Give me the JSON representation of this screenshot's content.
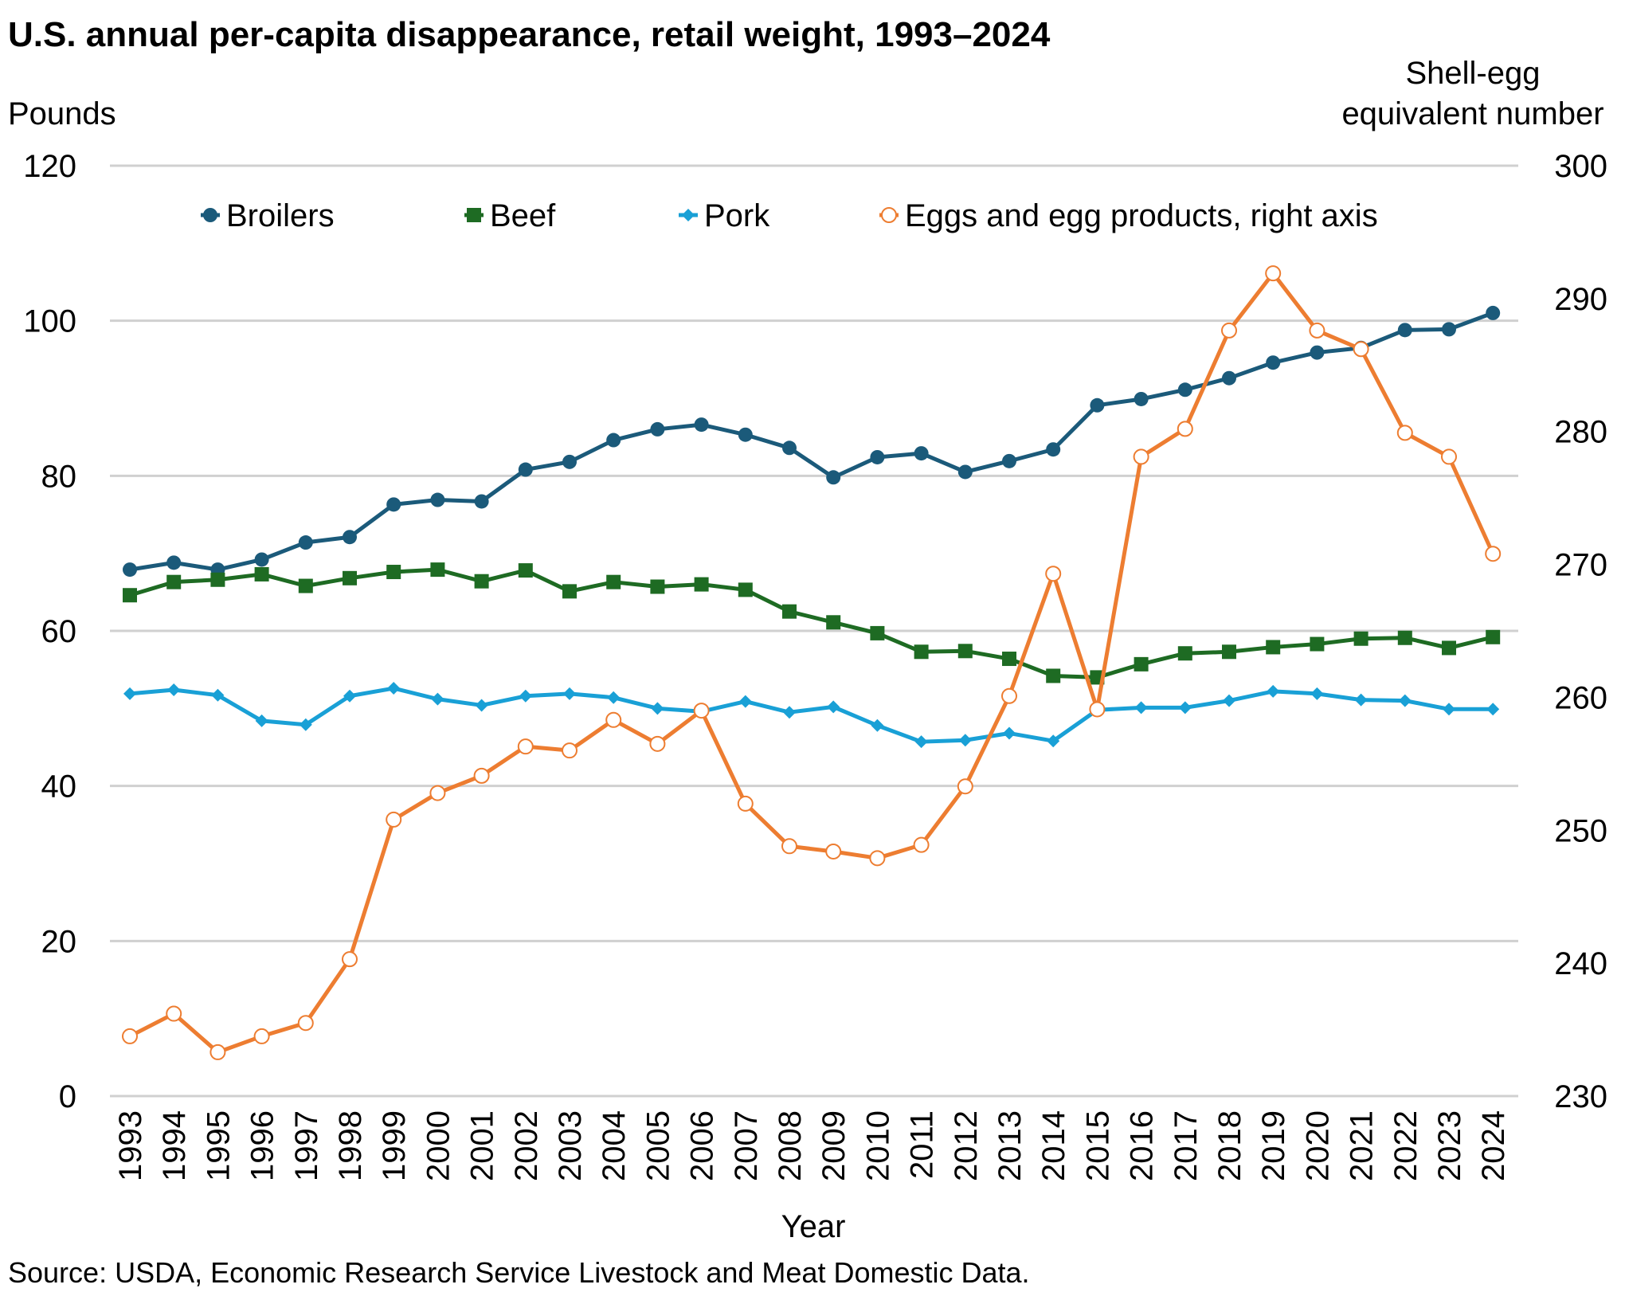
{
  "title": "U.S. annual per-capita disappearance, retail weight, 1993–2024",
  "source": "Source: USDA, Economic Research Service Livestock and Meat Domestic Data.",
  "colors": {
    "broilers": "#1b5a7a",
    "beef": "#1e6b23",
    "pork": "#19a0d6",
    "eggs": "#ed7d31",
    "grid": "#d0d0d0"
  },
  "chart_data": {
    "type": "line",
    "title": "U.S. annual per-capita disappearance, retail weight, 1993–2024",
    "xlabel": "Year",
    "ylabel": "Pounds",
    "y2label_line1": "Shell-egg",
    "y2label_line2": "equivalent number",
    "ylim": [
      0,
      120
    ],
    "y2lim": [
      230,
      300
    ],
    "yticks": [
      "0",
      "20",
      "40",
      "60",
      "80",
      "100",
      "120"
    ],
    "y2ticks": [
      "230",
      "240",
      "250",
      "260",
      "270",
      "280",
      "290",
      "300"
    ],
    "grid": true,
    "legend_position": "top",
    "x": [
      "1993",
      "1994",
      "1995",
      "1996",
      "1997",
      "1998",
      "1999",
      "2000",
      "2001",
      "2002",
      "2003",
      "2004",
      "2005",
      "2006",
      "2007",
      "2008",
      "2009",
      "2010",
      "2011",
      "2012",
      "2013",
      "2014",
      "2015",
      "2016",
      "2017",
      "2018",
      "2019",
      "2020",
      "2021",
      "2022",
      "2023",
      "2024"
    ],
    "series": [
      {
        "key": "broilers",
        "name": "Broilers",
        "axis": "left",
        "marker": "circle",
        "values": [
          67.9,
          68.8,
          67.9,
          69.2,
          71.4,
          72.1,
          76.3,
          76.9,
          76.7,
          80.8,
          81.8,
          84.6,
          86.0,
          86.6,
          85.3,
          83.6,
          79.8,
          82.4,
          82.9,
          80.5,
          81.9,
          83.4,
          89.1,
          89.9,
          91.1,
          92.6,
          94.6,
          95.9,
          96.5,
          98.8,
          98.9,
          101.0
        ]
      },
      {
        "key": "beef",
        "name": "Beef",
        "axis": "left",
        "marker": "square",
        "values": [
          64.6,
          66.3,
          66.6,
          67.3,
          65.8,
          66.8,
          67.6,
          67.9,
          66.4,
          67.8,
          65.1,
          66.3,
          65.7,
          66.0,
          65.3,
          62.5,
          61.1,
          59.7,
          57.3,
          57.4,
          56.4,
          54.2,
          54.0,
          55.7,
          57.1,
          57.3,
          57.9,
          58.3,
          59.0,
          59.1,
          57.8,
          59.2
        ]
      },
      {
        "key": "pork",
        "name": "Pork",
        "axis": "left",
        "marker": "diamond",
        "values": [
          51.9,
          52.4,
          51.7,
          48.4,
          47.9,
          51.6,
          52.6,
          51.2,
          50.4,
          51.6,
          51.9,
          51.4,
          50.0,
          49.6,
          50.9,
          49.5,
          50.2,
          47.8,
          45.7,
          45.9,
          46.8,
          45.8,
          49.8,
          50.1,
          50.1,
          51.0,
          52.2,
          51.9,
          51.1,
          51.0,
          49.9,
          49.9
        ]
      },
      {
        "key": "eggs",
        "name": "Eggs and egg products, right axis",
        "axis": "right",
        "marker": "open-circle",
        "values": [
          234.5,
          236.2,
          233.3,
          234.5,
          235.5,
          240.3,
          250.8,
          252.8,
          254.1,
          256.3,
          256.0,
          258.3,
          256.5,
          259.0,
          252.0,
          248.8,
          248.4,
          247.9,
          248.9,
          253.3,
          260.1,
          269.3,
          259.1,
          278.1,
          280.2,
          287.6,
          291.9,
          287.6,
          286.2,
          279.9,
          278.1,
          270.8
        ]
      }
    ]
  }
}
